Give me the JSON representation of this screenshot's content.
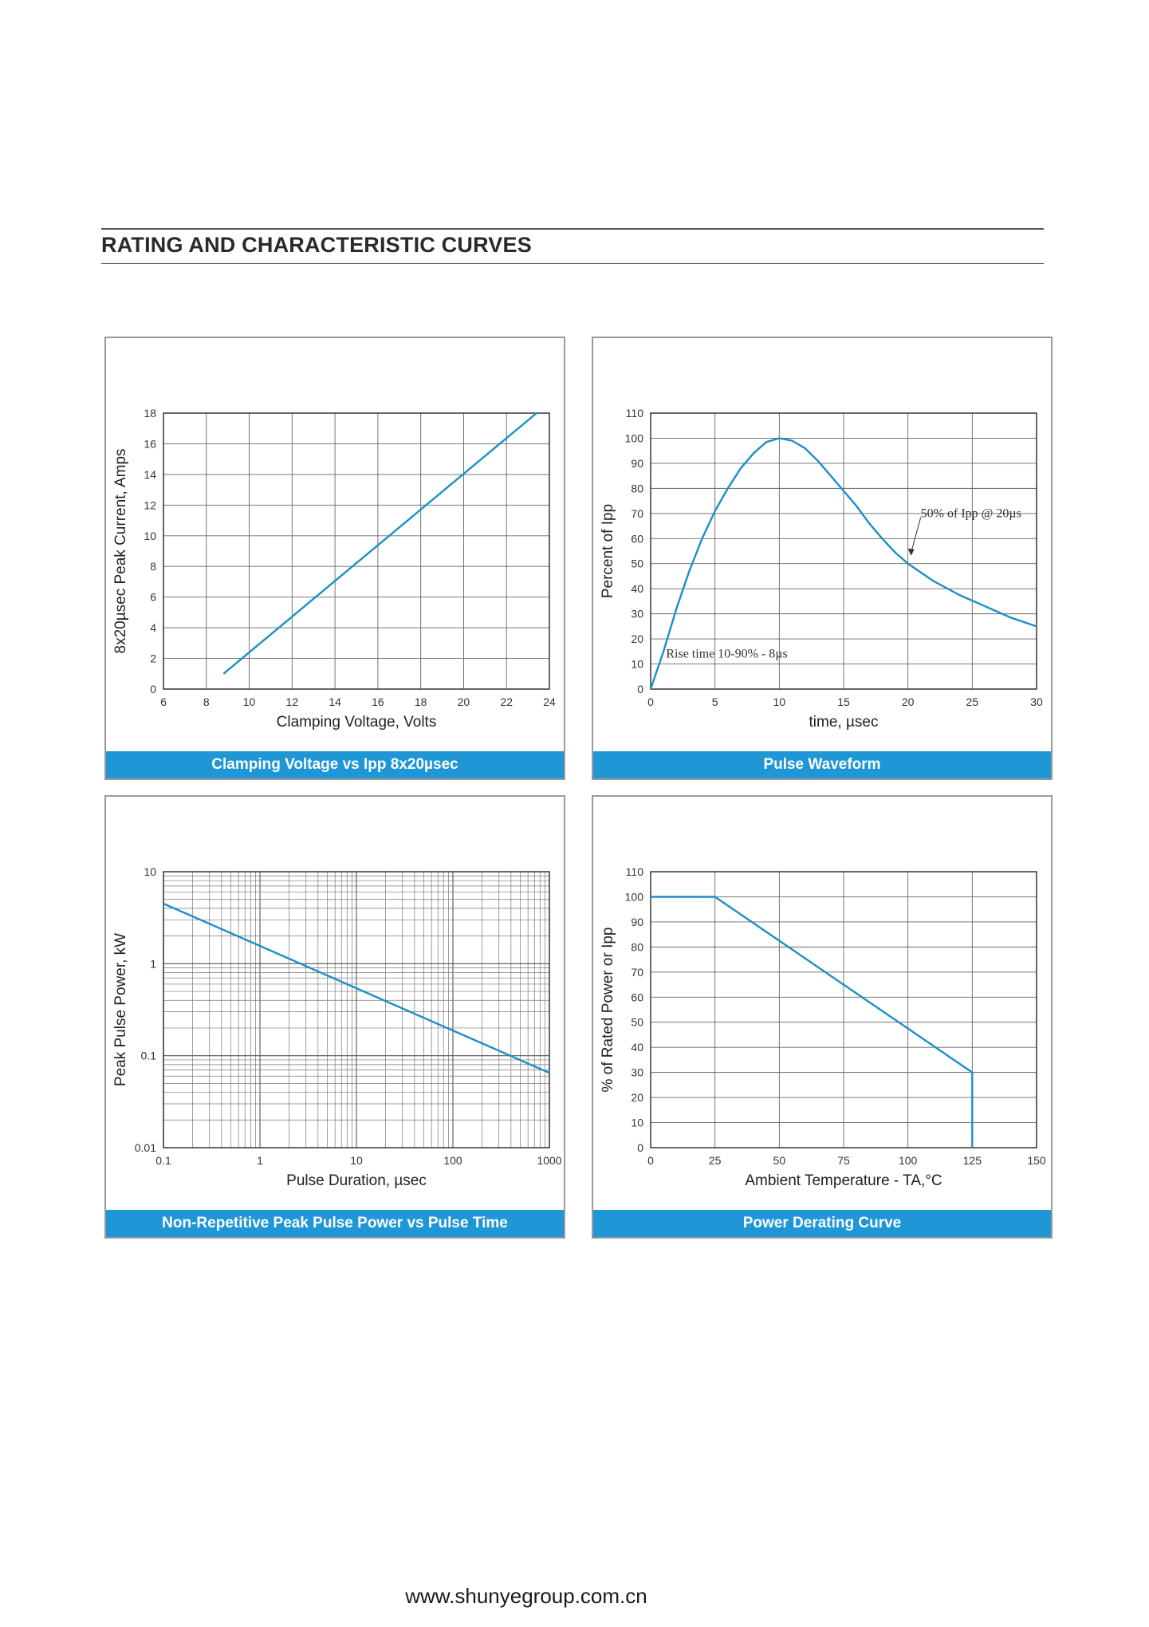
{
  "page": {
    "heading": "RATING AND CHARACTERISTIC CURVES",
    "footer": "www.shunyegroup.com.cn",
    "accent_color": "#1f96d6",
    "curve_color": "#1a8fc9"
  },
  "chart_data": [
    {
      "type": "line",
      "caption": "Clamping Voltage vs Ipp 8x20µsec",
      "xlabel": "Clamping Voltage, Volts",
      "ylabel": "8x20µsec Peak Current, Amps",
      "xlim": [
        6,
        24
      ],
      "ylim": [
        0,
        18
      ],
      "xticks": [
        6,
        8,
        10,
        12,
        14,
        16,
        18,
        20,
        22,
        24
      ],
      "yticks": [
        0,
        2,
        4,
        6,
        8,
        10,
        12,
        14,
        16,
        18
      ],
      "grid": true,
      "series": [
        {
          "x": [
            8.8,
            23.4
          ],
          "y": [
            1,
            18
          ]
        }
      ]
    },
    {
      "type": "line",
      "caption": "Pulse Waveform",
      "xlabel": "time, µsec",
      "ylabel": "Percent of Ipp",
      "xlim": [
        0,
        30
      ],
      "ylim": [
        0,
        110
      ],
      "xticks": [
        0,
        5,
        10,
        15,
        20,
        25,
        30
      ],
      "yticks": [
        0,
        10,
        20,
        30,
        40,
        50,
        60,
        70,
        80,
        90,
        100,
        110
      ],
      "grid": true,
      "annotations": [
        {
          "text": "50% of Ipp @ 20µs",
          "x": 20,
          "y": 50
        },
        {
          "text": "Rise time 10-90% - 8µs"
        }
      ],
      "series": [
        {
          "x": [
            0,
            1,
            2,
            3,
            4,
            5,
            6,
            7,
            8,
            9,
            10,
            11,
            12,
            13,
            14,
            15,
            16,
            17,
            18,
            19,
            20,
            22,
            24,
            26,
            28,
            30
          ],
          "y": [
            0,
            15,
            32,
            47,
            60,
            71,
            80,
            88,
            94,
            98.5,
            100,
            99,
            96,
            91,
            85,
            79,
            73,
            66,
            60,
            54.5,
            50,
            43,
            37.5,
            33,
            28.5,
            25
          ]
        }
      ]
    },
    {
      "type": "line",
      "caption": "Non-Repetitive Peak Pulse Power vs Pulse Time",
      "xlabel": "Pulse Duration, µsec",
      "ylabel": "Peak Pulse Power, kW",
      "xscale": "log",
      "yscale": "log",
      "xlim": [
        0.1,
        1000
      ],
      "ylim": [
        0.01,
        10
      ],
      "xticks": [
        "0.1",
        "1",
        "10",
        "100",
        "1000"
      ],
      "yticks": [
        "0.01",
        "0.1",
        "1",
        "10"
      ],
      "grid": true,
      "series": [
        {
          "x": [
            0.1,
            1000
          ],
          "y": [
            4.5,
            0.065
          ]
        }
      ]
    },
    {
      "type": "line",
      "caption": "Power Derating Curve",
      "xlabel": "Ambient Temperature - TA,°C",
      "ylabel": "% of Rated Power or Ipp",
      "xlim": [
        0,
        150
      ],
      "ylim": [
        0,
        110
      ],
      "xticks": [
        0,
        25,
        50,
        75,
        100,
        125,
        150
      ],
      "yticks": [
        0,
        10,
        20,
        30,
        40,
        50,
        60,
        70,
        80,
        90,
        100,
        110
      ],
      "grid": true,
      "series": [
        {
          "x": [
            0,
            25,
            125,
            125
          ],
          "y": [
            100,
            100,
            30,
            0
          ]
        }
      ]
    }
  ]
}
